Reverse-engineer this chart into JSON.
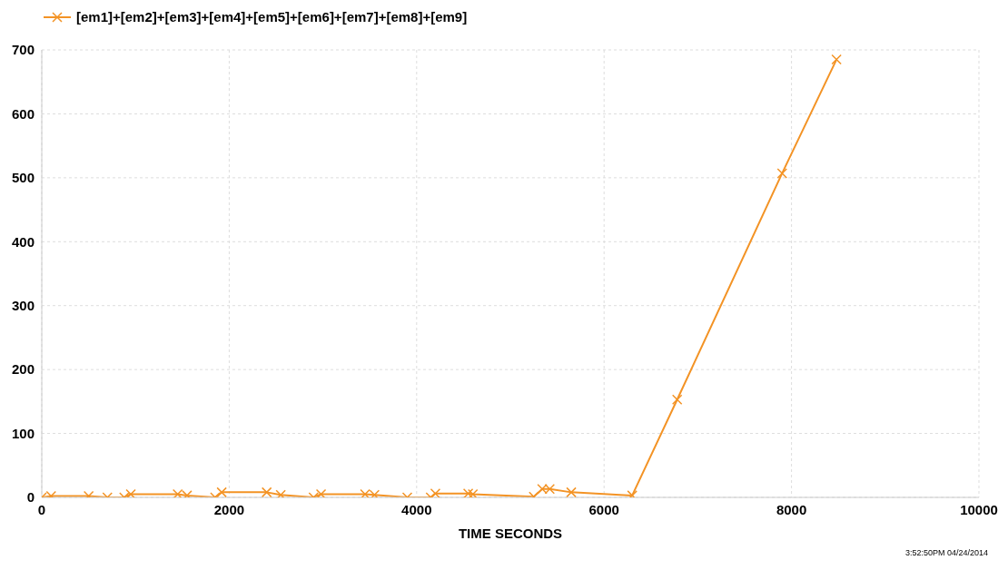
{
  "chart_data": {
    "type": "line",
    "xlabel": "TIME  SECONDS",
    "annotations": [
      "3:52:50PM 04/24/2014"
    ],
    "x": [
      0,
      100,
      500,
      700,
      880,
      950,
      1450,
      1550,
      1850,
      1920,
      2400,
      2550,
      2900,
      2980,
      3450,
      3550,
      3900,
      4150,
      4200,
      4550,
      4600,
      5250,
      5340,
      5420,
      5650,
      6300,
      6780,
      7900,
      8480
    ],
    "series": [
      {
        "name": "[em1]+[em2]+[em3]+[em4]+[em5]+[em6]+[em7]+[em8]+[em9]",
        "color": "#f39325",
        "values": [
          0,
          2,
          2,
          0,
          0,
          5,
          5,
          3,
          0,
          8,
          8,
          4,
          0,
          5,
          5,
          4,
          0,
          0,
          6,
          6,
          5,
          1,
          13,
          13,
          8,
          3,
          153,
          507,
          685
        ]
      }
    ],
    "xlim": [
      0,
      10000
    ],
    "xticks": [
      0,
      2000,
      4000,
      6000,
      8000,
      10000
    ],
    "ylim": [
      0,
      700
    ],
    "yticks": [
      0,
      100,
      200,
      300,
      400,
      500,
      600,
      700
    ],
    "grid": true,
    "legend": "top left",
    "marker": "cross",
    "line_style": "solid"
  }
}
